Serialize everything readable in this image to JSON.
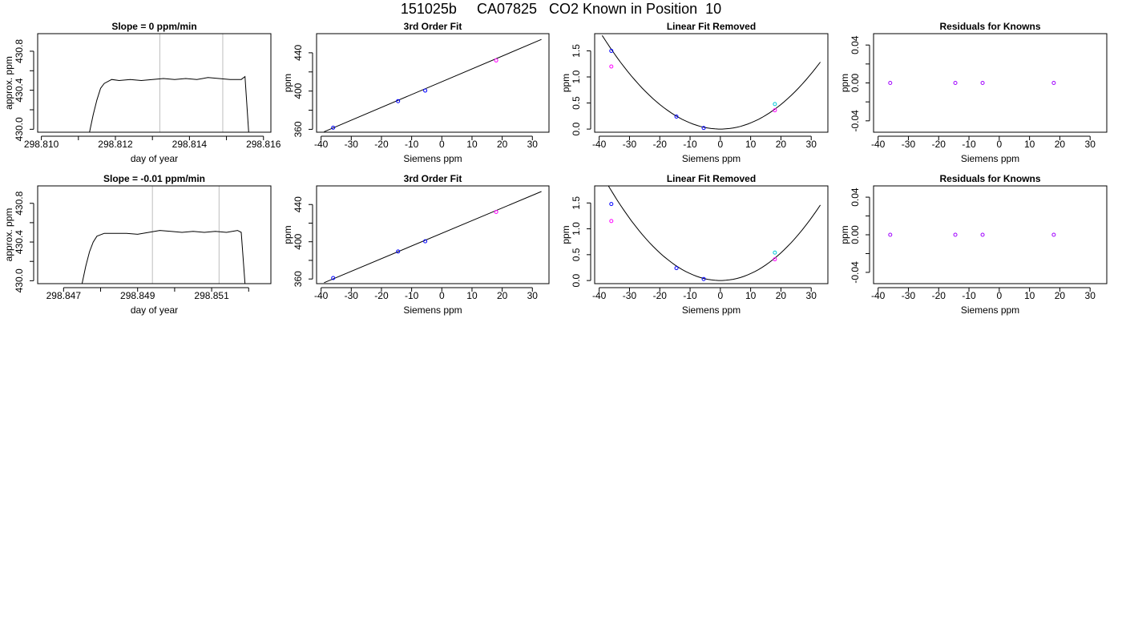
{
  "title": "151025b     CA07825   CO2 Known in Position  10",
  "colors": {
    "line": "#000000",
    "frame": "#000000",
    "window": "#bdbdbd",
    "known_blue": "#0000ff",
    "known_purple": "#a000ff",
    "magenta": "#ff00ff",
    "cyan": "#00c8d8"
  },
  "chart_data": [
    {
      "type": "line",
      "title": "Slope =  0  ppm/min",
      "xlabel": "day of year",
      "ylabel": "approx. ppm",
      "xlim": [
        298.8099,
        298.8162
      ],
      "ylim": [
        429.97,
        430.98
      ],
      "xticks": [
        "298.810",
        "298.812",
        "298.814",
        "298.816"
      ],
      "xtick_values": [
        298.81,
        298.812,
        298.814,
        298.816
      ],
      "xminor": [
        298.811,
        298.813,
        298.815
      ],
      "yticks": [
        "430.0",
        "430.4",
        "430.8"
      ],
      "ytick_values": [
        430.0,
        430.4,
        430.8
      ],
      "yminor": [
        430.2,
        430.6
      ],
      "vlines": [
        298.8132,
        298.8149
      ],
      "series": [
        {
          "x": [
            298.8113,
            298.8114,
            298.8115,
            298.8116,
            298.8117,
            298.8119,
            298.8121,
            298.8124,
            298.8127,
            298.813,
            298.8133,
            298.8136,
            298.8139,
            298.8142,
            298.8145,
            298.8148,
            298.8151,
            298.8154,
            298.8155,
            298.8156
          ],
          "y": [
            429.97,
            430.15,
            430.3,
            430.42,
            430.47,
            430.51,
            430.5,
            430.51,
            430.5,
            430.51,
            430.52,
            430.51,
            430.52,
            430.51,
            430.53,
            430.52,
            430.51,
            430.51,
            430.54,
            429.97
          ]
        }
      ]
    },
    {
      "type": "scatter",
      "title": "3rd Order Fit",
      "xlabel": "Siemens ppm",
      "ylabel": "ppm",
      "xlim": [
        -41.5,
        35.5
      ],
      "ylim": [
        357,
        460
      ],
      "xticks": [
        "-40",
        "-30",
        "-20",
        "-10",
        "0",
        "10",
        "20",
        "30"
      ],
      "xtick_values": [
        -40,
        -30,
        -20,
        -10,
        0,
        10,
        20,
        30
      ],
      "yticks": [
        "360",
        "400",
        "440"
      ],
      "ytick_values": [
        360,
        400,
        440
      ],
      "yminor": [
        380,
        420
      ],
      "curve": {
        "x": [
          -39,
          33
        ],
        "y": [
          357.5,
          454
        ]
      },
      "points": [
        {
          "x": -36,
          "y": 361.7,
          "color": "known_blue"
        },
        {
          "x": -14.5,
          "y": 389.5,
          "color": "known_blue"
        },
        {
          "x": -5.5,
          "y": 400.5,
          "color": "known_blue"
        },
        {
          "x": 18,
          "y": 432,
          "color": "magenta"
        }
      ]
    },
    {
      "type": "scatter",
      "title": "Linear Fit Removed",
      "xlabel": "Siemens ppm",
      "ylabel": "ppm",
      "xlim": [
        -41.5,
        35.5
      ],
      "ylim": [
        -0.06,
        1.83
      ],
      "xticks": [
        "-40",
        "-30",
        "-20",
        "-10",
        "0",
        "10",
        "20",
        "30"
      ],
      "xtick_values": [
        -40,
        -30,
        -20,
        -10,
        0,
        10,
        20,
        30
      ],
      "yticks": [
        "0.0",
        "0.5",
        "1.0",
        "1.5"
      ],
      "ytick_values": [
        0.0,
        0.5,
        1.0,
        1.5
      ],
      "curve": {
        "coef": 0.00118,
        "x0": 0,
        "xrange": [
          -39,
          33
        ]
      },
      "points": [
        {
          "x": -36,
          "y": 1.5,
          "color": "known_blue"
        },
        {
          "x": -36,
          "y": 1.2,
          "color": "magenta"
        },
        {
          "x": -14.5,
          "y": 0.24,
          "color": "known_blue"
        },
        {
          "x": -5.5,
          "y": 0.02,
          "color": "known_blue"
        },
        {
          "x": 18,
          "y": 0.48,
          "color": "cyan"
        },
        {
          "x": 18,
          "y": 0.36,
          "color": "magenta"
        }
      ]
    },
    {
      "type": "scatter",
      "title": "Residuals for Knowns",
      "xlabel": "Siemens ppm",
      "ylabel": "ppm",
      "xlim": [
        -41.5,
        35.5
      ],
      "ylim": [
        -0.052,
        0.052
      ],
      "xticks": [
        "-40",
        "-30",
        "-20",
        "-10",
        "0",
        "10",
        "20",
        "30"
      ],
      "xtick_values": [
        -40,
        -30,
        -20,
        -10,
        0,
        10,
        20,
        30
      ],
      "yticks": [
        "-0.04",
        "0.00",
        "0.04"
      ],
      "ytick_values": [
        -0.04,
        0.0,
        0.04
      ],
      "yminor": [
        -0.02,
        0.02
      ],
      "points": [
        {
          "x": -36,
          "y": 0.0,
          "color": "known_purple"
        },
        {
          "x": -14.5,
          "y": 0.0,
          "color": "known_purple"
        },
        {
          "x": -5.5,
          "y": 0.0,
          "color": "known_purple"
        },
        {
          "x": 18,
          "y": 0.0,
          "color": "known_purple"
        }
      ]
    },
    {
      "type": "line",
      "title": "Slope =  -0.01  ppm/min",
      "xlabel": "day of year",
      "ylabel": "approx. ppm",
      "xlim": [
        298.8463,
        298.8526
      ],
      "ylim": [
        429.97,
        430.98
      ],
      "xticks": [
        "298.847",
        "298.849",
        "298.851"
      ],
      "xtick_values": [
        298.847,
        298.849,
        298.851
      ],
      "xminor": [
        298.848,
        298.85,
        298.852
      ],
      "yticks": [
        "430.0",
        "430.4",
        "430.8"
      ],
      "ytick_values": [
        430.0,
        430.4,
        430.8
      ],
      "yminor": [
        430.2,
        430.6
      ],
      "vlines": [
        298.8494,
        298.8512
      ],
      "series": [
        {
          "x": [
            298.8475,
            298.8476,
            298.8477,
            298.8478,
            298.8479,
            298.8481,
            298.8484,
            298.8487,
            298.849,
            298.8493,
            298.8496,
            298.8499,
            298.8502,
            298.8505,
            298.8508,
            298.8511,
            298.8514,
            298.8517,
            298.8518,
            298.8519
          ],
          "y": [
            429.97,
            430.15,
            430.3,
            430.4,
            430.46,
            430.49,
            430.49,
            430.49,
            430.48,
            430.5,
            430.52,
            430.51,
            430.5,
            430.51,
            430.5,
            430.51,
            430.5,
            430.52,
            430.5,
            429.97
          ]
        }
      ]
    },
    {
      "type": "scatter",
      "title": "3rd Order Fit",
      "xlabel": "Siemens ppm",
      "ylabel": "ppm",
      "xlim": [
        -41.5,
        35.5
      ],
      "ylim": [
        355,
        460
      ],
      "xticks": [
        "-40",
        "-30",
        "-20",
        "-10",
        "0",
        "10",
        "20",
        "30"
      ],
      "xtick_values": [
        -40,
        -30,
        -20,
        -10,
        0,
        10,
        20,
        30
      ],
      "yticks": [
        "360",
        "400",
        "440"
      ],
      "ytick_values": [
        360,
        400,
        440
      ],
      "yminor": [
        380,
        420
      ],
      "curve": {
        "x": [
          -39,
          33
        ],
        "y": [
          356,
          454
        ]
      },
      "points": [
        {
          "x": -36,
          "y": 361,
          "color": "known_blue"
        },
        {
          "x": -14.5,
          "y": 389.5,
          "color": "known_blue"
        },
        {
          "x": -5.5,
          "y": 400.5,
          "color": "known_blue"
        },
        {
          "x": 18,
          "y": 432,
          "color": "magenta"
        }
      ]
    },
    {
      "type": "scatter",
      "title": "Linear Fit Removed",
      "xlabel": "Siemens ppm",
      "ylabel": "ppm",
      "xlim": [
        -41.5,
        35.5
      ],
      "ylim": [
        -0.06,
        1.83
      ],
      "xticks": [
        "-40",
        "-30",
        "-20",
        "-10",
        "0",
        "10",
        "20",
        "30"
      ],
      "xtick_values": [
        -40,
        -30,
        -20,
        -10,
        0,
        10,
        20,
        30
      ],
      "yticks": [
        "0.0",
        "0.5",
        "1.0",
        "1.5"
      ],
      "ytick_values": [
        0.0,
        0.5,
        1.0,
        1.5
      ],
      "curve": {
        "coef": 0.00134,
        "x0": 0,
        "xrange": [
          -39,
          33
        ]
      },
      "points": [
        {
          "x": -36,
          "y": 1.48,
          "color": "known_blue"
        },
        {
          "x": -36,
          "y": 1.15,
          "color": "magenta"
        },
        {
          "x": -14.5,
          "y": 0.24,
          "color": "known_blue"
        },
        {
          "x": -5.5,
          "y": 0.03,
          "color": "known_blue"
        },
        {
          "x": 18,
          "y": 0.54,
          "color": "cyan"
        },
        {
          "x": 18,
          "y": 0.41,
          "color": "magenta"
        }
      ]
    },
    {
      "type": "scatter",
      "title": "Residuals for Knowns",
      "xlabel": "Siemens ppm",
      "ylabel": "ppm",
      "xlim": [
        -41.5,
        35.5
      ],
      "ylim": [
        -0.052,
        0.052
      ],
      "xticks": [
        "-40",
        "-30",
        "-20",
        "-10",
        "0",
        "10",
        "20",
        "30"
      ],
      "xtick_values": [
        -40,
        -30,
        -20,
        -10,
        0,
        10,
        20,
        30
      ],
      "yticks": [
        "-0.04",
        "0.00",
        "0.04"
      ],
      "ytick_values": [
        -0.04,
        0.0,
        0.04
      ],
      "yminor": [
        -0.02,
        0.02
      ],
      "points": [
        {
          "x": -36,
          "y": 0.0,
          "color": "known_purple"
        },
        {
          "x": -14.5,
          "y": 0.0,
          "color": "known_purple"
        },
        {
          "x": -5.5,
          "y": 0.0,
          "color": "known_purple"
        },
        {
          "x": 18,
          "y": 0.0,
          "color": "known_purple"
        }
      ]
    }
  ]
}
